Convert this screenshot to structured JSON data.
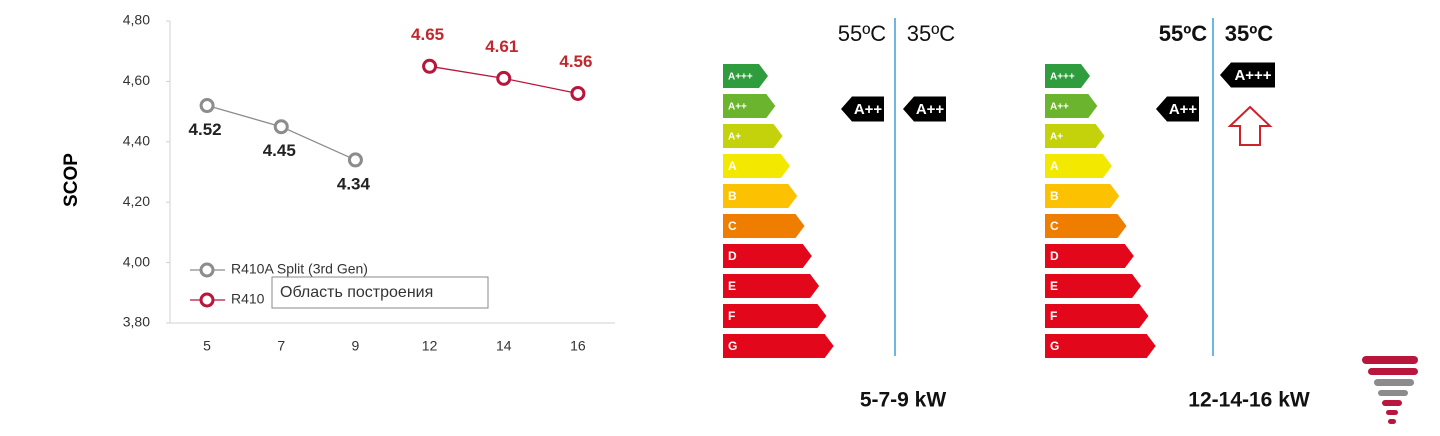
{
  "chart_data": {
    "type": "line",
    "y_label": "SCOP",
    "categories": [
      "5",
      "7",
      "9",
      "12",
      "14",
      "16"
    ],
    "series": [
      {
        "name": "R410A Split (3rd Gen)",
        "color": "#8c8c8c",
        "label_color": "#222222",
        "values": [
          4.52,
          4.45,
          4.34,
          null,
          null,
          null
        ]
      },
      {
        "name": "R410",
        "color": "#b8163c",
        "label_color": "#c0282e",
        "values": [
          null,
          null,
          null,
          4.65,
          4.61,
          4.56
        ]
      }
    ],
    "ylim": [
      3.8,
      4.8
    ],
    "yticks": [
      {
        "value": 3.8,
        "label": "3,80"
      },
      {
        "value": 4.0,
        "label": "4,00"
      },
      {
        "value": 4.2,
        "label": "4,20"
      },
      {
        "value": 4.4,
        "label": "4,40"
      },
      {
        "value": 4.6,
        "label": "4,60"
      },
      {
        "value": 4.8,
        "label": "4,80"
      }
    ],
    "tooltip": "Область построения"
  },
  "energy_labels": {
    "classes": [
      {
        "label": "A+++",
        "color": "#2f9d3e"
      },
      {
        "label": "A++",
        "color": "#6bb42d"
      },
      {
        "label": "A+",
        "color": "#c4d20c"
      },
      {
        "label": "A",
        "color": "#f2e800"
      },
      {
        "label": "B",
        "color": "#fcc100"
      },
      {
        "label": "C",
        "color": "#ee7d00"
      },
      {
        "label": "D",
        "color": "#e2071b"
      },
      {
        "label": "E",
        "color": "#e2071b"
      },
      {
        "label": "F",
        "color": "#e2071b"
      },
      {
        "label": "G",
        "color": "#e2071b"
      }
    ],
    "panels": [
      {
        "headers": [
          "55ºC",
          "35ºC"
        ],
        "ratings": [
          "A++",
          "A++"
        ],
        "title": "5-7-9 kW"
      },
      {
        "headers": [
          "55ºC",
          "35ºC"
        ],
        "ratings": [
          "A++",
          "A+++"
        ],
        "title": "12-14-16 kW"
      }
    ]
  }
}
